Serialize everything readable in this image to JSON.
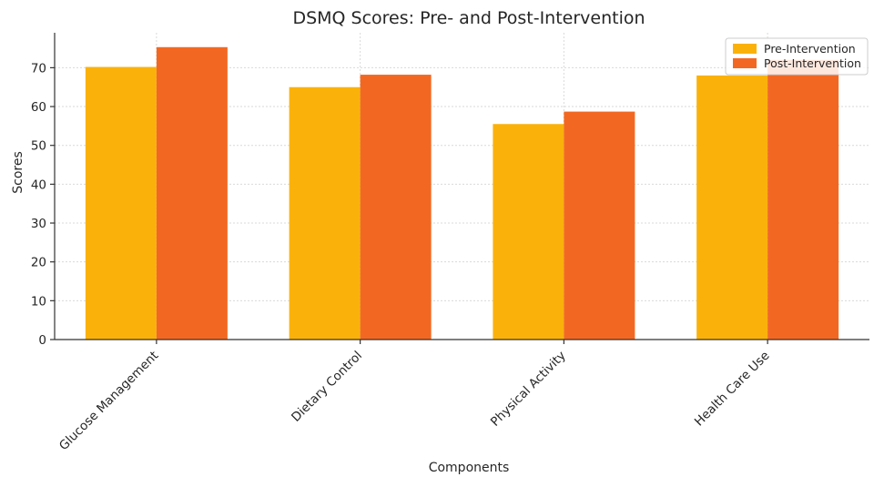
{
  "chart_data": {
    "type": "bar",
    "title": "DSMQ Scores: Pre- and Post-Intervention",
    "xlabel": "Components",
    "ylabel": "Scores",
    "categories": [
      "Glucose Management",
      "Dietary Control",
      "Physical Activity",
      "Health Care Use"
    ],
    "series": [
      {
        "name": "Pre-Intervention",
        "values": [
          70.2,
          65,
          55.5,
          68
        ],
        "color": "#FAB20B"
      },
      {
        "name": "Post-Intervention",
        "values": [
          75.3,
          68.2,
          58.7,
          72
        ],
        "color": "#F26822"
      }
    ],
    "ylim": [
      0,
      79
    ],
    "yticks": [
      0,
      10,
      20,
      30,
      40,
      50,
      60,
      70
    ],
    "grid": true,
    "legend_position": "top-right"
  }
}
